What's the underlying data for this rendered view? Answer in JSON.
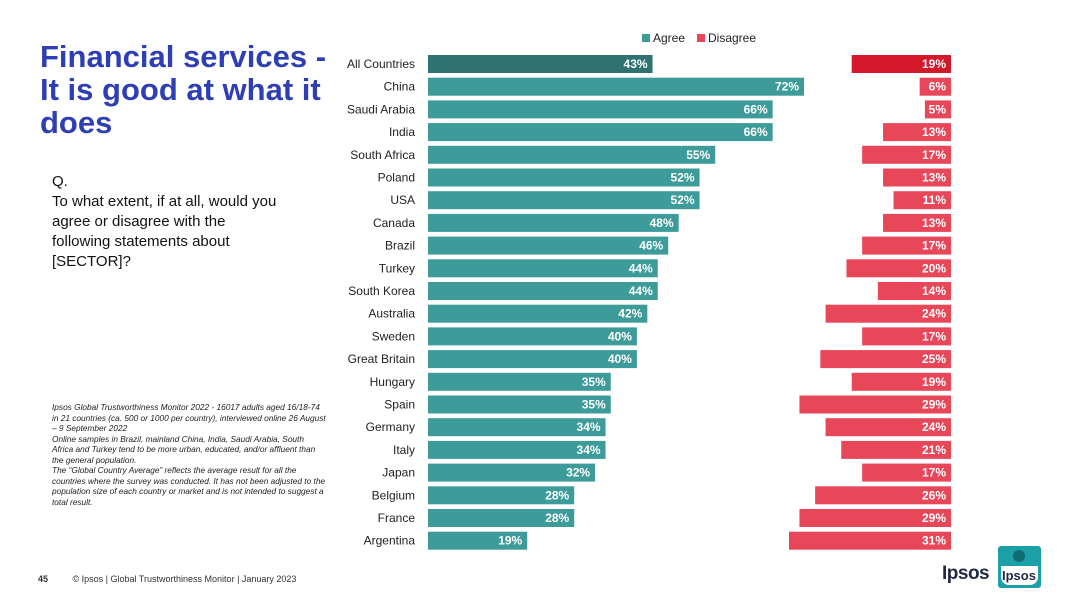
{
  "slide": {
    "title": "Financial services - It is good at what it does",
    "question_prefix": "Q.",
    "question": "To what extent, if at all, would you agree or disagree with the following statements about [SECTOR]?",
    "notes": [
      "Ipsos Global Trustworthiness Monitor 2022 - 16017 adults aged 16/18-74 in 21 countries (ca. 500 or 1000 per country), interviewed online 26 August – 9 September 2022",
      "Online samples in Brazil, mainland China, India, Saudi Arabia, South Africa and Turkey tend to be more urban, educated, and/or affluent than the general population.",
      "The “Global Country Average” reflects the average result for all the countries where the survey was conducted. It has not been adjusted to the population size of each country or market and is not intended to suggest a total result."
    ],
    "page_number": "45",
    "footer": "© Ipsos | Global Trustworthiness Monitor | January 2023",
    "logo_text": "Ipsos",
    "badge_text": "Ipsos"
  },
  "colors": {
    "title": "#2e3eb4",
    "agree": "#3d9c9a",
    "agree_highlight": "#2e7372",
    "disagree": "#e8475a",
    "disagree_highlight": "#d4182c"
  },
  "chart_data": {
    "type": "bar",
    "orientation": "horizontal",
    "legend": [
      "Agree",
      "Disagree"
    ],
    "legend_position": "top",
    "categories": [
      "All Countries",
      "China",
      "Saudi Arabia",
      "India",
      "South Africa",
      "Poland",
      "USA",
      "Canada",
      "Brazil",
      "Turkey",
      "South Korea",
      "Australia",
      "Sweden",
      "Great Britain",
      "Hungary",
      "Spain",
      "Germany",
      "Italy",
      "Japan",
      "Belgium",
      "France",
      "Argentina"
    ],
    "series": [
      {
        "name": "Agree",
        "values": [
          43,
          72,
          66,
          66,
          55,
          52,
          52,
          48,
          46,
          44,
          44,
          42,
          40,
          40,
          35,
          35,
          34,
          34,
          32,
          28,
          28,
          19
        ]
      },
      {
        "name": "Disagree",
        "values": [
          19,
          6,
          5,
          13,
          17,
          13,
          11,
          13,
          17,
          20,
          14,
          24,
          17,
          25,
          19,
          29,
          24,
          21,
          17,
          26,
          29,
          31
        ]
      }
    ],
    "value_suffix": "%",
    "xlim": [
      0,
      100
    ]
  }
}
